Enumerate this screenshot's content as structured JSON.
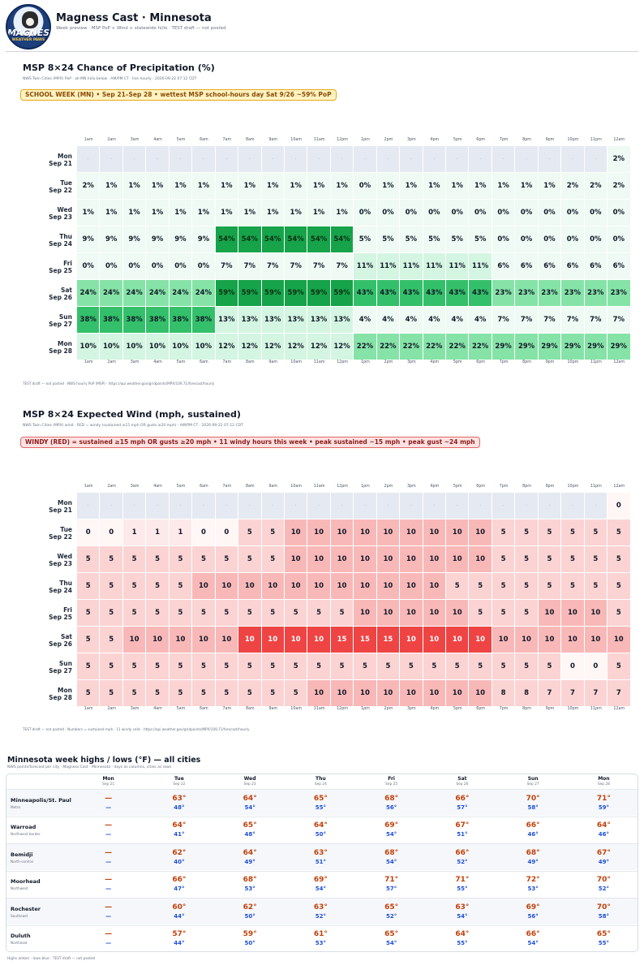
{
  "header": {
    "logo_text": "MAGNESS",
    "logo_sub": "WEATHER PAWS",
    "title": "Magness Cast · Minnesota",
    "subtitle": "Week preview  ·  MSP PoP + Wind + statewide hi/lo  ·  TEST draft — not posted"
  },
  "pop": {
    "title": "MSP 8×24 Chance of Precipitation (%)",
    "subtitle": "NWS Twin Cities (MPX) PoP · all-MN hi/lo below · AM/PM CT · live hourly · 2026-09-22 07:12 CDT",
    "banner": "SCHOOL WEEK (MN)  •  Sep 21–Sep 28  •  wettest MSP school-hours day Sat 9/26 ~59% PoP",
    "footer": "TEST draft — not posted  ·  NWS hourly PoP (MSP)  ·  https://api.weather.gov/gridpoints/MPX/109,71/forecast/hourly",
    "accent": "#16a34a"
  },
  "wind": {
    "title": "MSP 8×24 Expected Wind (mph, sustained)",
    "subtitle": "NWS Twin Cities (MPX) wind · RED = windy (sustained ≥15 mph OR gusts ≥20 mph) · AM/PM CT · 2026-09-22 07:12 CDT",
    "banner": "WINDY (RED) = sustained ≥15 mph OR gusts ≥20 mph  •  11 windy hours this week  •  peak sustained ~15 mph  •  peak gust ~24 mph",
    "footer": "TEST draft — not posted  ·  Numbers = sustained mph  ·  11 windy cells  ·  https://api.weather.gov/gridpoints/MPX/109,71/forecast/hourly",
    "accent": "#ef4444"
  },
  "hours": [
    "1am",
    "2am",
    "3am",
    "4am",
    "5am",
    "6am",
    "7am",
    "8am",
    "9am",
    "10am",
    "11am",
    "12pm",
    "1pm",
    "2pm",
    "3pm",
    "4pm",
    "5pm",
    "6pm",
    "7pm",
    "8pm",
    "9pm",
    "10pm",
    "11pm",
    "12am"
  ],
  "days": [
    {
      "dow": "Mon",
      "date": "Sep 21"
    },
    {
      "dow": "Tue",
      "date": "Sep 22"
    },
    {
      "dow": "Wed",
      "date": "Sep 23"
    },
    {
      "dow": "Thu",
      "date": "Sep 24"
    },
    {
      "dow": "Fri",
      "date": "Sep 25"
    },
    {
      "dow": "Sat",
      "date": "Sep 26"
    },
    {
      "dow": "Sun",
      "date": "Sep 27"
    },
    {
      "dow": "Mon",
      "date": "Sep 28"
    }
  ],
  "pop_values": [
    [
      null,
      null,
      null,
      null,
      null,
      null,
      null,
      null,
      null,
      null,
      null,
      null,
      null,
      null,
      null,
      null,
      null,
      null,
      null,
      null,
      null,
      null,
      null,
      2
    ],
    [
      2,
      1,
      1,
      1,
      1,
      1,
      1,
      1,
      1,
      1,
      1,
      1,
      0,
      1,
      1,
      1,
      1,
      1,
      1,
      1,
      1,
      2,
      2,
      2
    ],
    [
      1,
      1,
      1,
      1,
      1,
      1,
      1,
      1,
      1,
      1,
      1,
      1,
      0,
      0,
      0,
      0,
      0,
      0,
      0,
      0,
      0,
      0,
      0,
      0
    ],
    [
      9,
      9,
      9,
      9,
      9,
      9,
      54,
      54,
      54,
      54,
      54,
      54,
      5,
      5,
      5,
      5,
      5,
      5,
      0,
      0,
      0,
      0,
      0,
      0
    ],
    [
      0,
      0,
      0,
      0,
      0,
      0,
      7,
      7,
      7,
      7,
      7,
      7,
      11,
      11,
      11,
      11,
      11,
      11,
      6,
      6,
      6,
      6,
      6,
      6
    ],
    [
      24,
      24,
      24,
      24,
      24,
      24,
      59,
      59,
      59,
      59,
      59,
      59,
      43,
      43,
      43,
      43,
      43,
      43,
      23,
      23,
      23,
      23,
      23,
      23
    ],
    [
      38,
      38,
      38,
      38,
      38,
      38,
      13,
      13,
      13,
      13,
      13,
      13,
      4,
      4,
      4,
      4,
      4,
      4,
      7,
      7,
      7,
      7,
      7,
      7
    ],
    [
      10,
      10,
      10,
      10,
      10,
      10,
      12,
      12,
      12,
      12,
      12,
      12,
      22,
      22,
      22,
      22,
      22,
      22,
      29,
      29,
      29,
      29,
      29,
      29
    ]
  ],
  "wind_values": [
    [
      null,
      null,
      null,
      null,
      null,
      null,
      null,
      null,
      null,
      null,
      null,
      null,
      null,
      null,
      null,
      null,
      null,
      null,
      null,
      null,
      null,
      null,
      null,
      0
    ],
    [
      0,
      0,
      1,
      1,
      1,
      0,
      0,
      5,
      5,
      10,
      10,
      10,
      10,
      10,
      10,
      10,
      10,
      10,
      5,
      5,
      5,
      5,
      5,
      5
    ],
    [
      5,
      5,
      5,
      5,
      5,
      5,
      5,
      5,
      5,
      10,
      10,
      10,
      10,
      10,
      10,
      10,
      10,
      10,
      5,
      5,
      5,
      5,
      5,
      5
    ],
    [
      5,
      5,
      5,
      5,
      5,
      10,
      10,
      10,
      10,
      10,
      10,
      10,
      10,
      10,
      10,
      10,
      5,
      5,
      5,
      5,
      5,
      5,
      5,
      5
    ],
    [
      5,
      5,
      5,
      5,
      5,
      5,
      5,
      5,
      5,
      5,
      5,
      5,
      10,
      10,
      10,
      10,
      10,
      5,
      5,
      5,
      10,
      10,
      10,
      5
    ],
    [
      5,
      5,
      10,
      10,
      10,
      10,
      10,
      10,
      10,
      10,
      10,
      15,
      15,
      15,
      10,
      10,
      10,
      10,
      10,
      10,
      10,
      10,
      10,
      10
    ],
    [
      5,
      5,
      5,
      5,
      5,
      5,
      5,
      5,
      5,
      5,
      5,
      5,
      5,
      5,
      5,
      5,
      5,
      5,
      5,
      5,
      5,
      0,
      0,
      5
    ],
    [
      5,
      5,
      5,
      5,
      5,
      5,
      5,
      5,
      5,
      5,
      10,
      10,
      10,
      10,
      10,
      10,
      10,
      10,
      8,
      8,
      7,
      7,
      7,
      7
    ]
  ],
  "wind_windy": [
    [
      0,
      0,
      0,
      0,
      0,
      0,
      0,
      0,
      0,
      0,
      0,
      0,
      0,
      0,
      0,
      0,
      0,
      0,
      0,
      0,
      0,
      0,
      0,
      0
    ],
    [
      0,
      0,
      0,
      0,
      0,
      0,
      0,
      0,
      0,
      0,
      0,
      0,
      0,
      0,
      0,
      0,
      0,
      0,
      0,
      0,
      0,
      0,
      0,
      0
    ],
    [
      0,
      0,
      0,
      0,
      0,
      0,
      0,
      0,
      0,
      0,
      0,
      0,
      0,
      0,
      0,
      0,
      0,
      0,
      0,
      0,
      0,
      0,
      0,
      0
    ],
    [
      0,
      0,
      0,
      0,
      0,
      0,
      0,
      0,
      0,
      0,
      0,
      0,
      0,
      0,
      0,
      0,
      0,
      0,
      0,
      0,
      0,
      0,
      0,
      0
    ],
    [
      0,
      0,
      0,
      0,
      0,
      0,
      0,
      0,
      0,
      0,
      0,
      0,
      0,
      0,
      0,
      0,
      0,
      0,
      0,
      0,
      0,
      0,
      0,
      0
    ],
    [
      0,
      0,
      0,
      0,
      0,
      0,
      0,
      1,
      1,
      1,
      1,
      1,
      1,
      1,
      1,
      1,
      1,
      1,
      0,
      0,
      0,
      0,
      0,
      0
    ],
    [
      0,
      0,
      0,
      0,
      0,
      0,
      0,
      0,
      0,
      0,
      0,
      0,
      0,
      0,
      0,
      0,
      0,
      0,
      0,
      0,
      0,
      0,
      0,
      0
    ],
    [
      0,
      0,
      0,
      0,
      0,
      0,
      0,
      0,
      0,
      0,
      0,
      0,
      0,
      0,
      0,
      0,
      0,
      0,
      0,
      0,
      0,
      0,
      0,
      0
    ]
  ],
  "temps": {
    "title": "Minnesota week highs / lows (°F) — all cities",
    "subtitle": "NWS points/forecast per city  ·  Magness Cast · Minnesota  ·  days as columns, cities as rows",
    "footer": "Highs amber · lows blue  ·  TEST draft — not posted",
    "cities": [
      {
        "name": "Minneapolis/St. Paul",
        "region": "Metro",
        "hi": [
          "—",
          "63°",
          "64°",
          "65°",
          "68°",
          "66°",
          "70°",
          "71°"
        ],
        "lo": [
          "—",
          "48°",
          "54°",
          "55°",
          "56°",
          "57°",
          "58°",
          "59°"
        ]
      },
      {
        "name": "Warroad",
        "region": "Northwest border",
        "hi": [
          "—",
          "64°",
          "65°",
          "64°",
          "69°",
          "67°",
          "66°",
          "64°"
        ],
        "lo": [
          "—",
          "41°",
          "48°",
          "50°",
          "54°",
          "51°",
          "46°",
          "46°"
        ]
      },
      {
        "name": "Bemidji",
        "region": "North-central",
        "hi": [
          "—",
          "62°",
          "64°",
          "63°",
          "68°",
          "66°",
          "68°",
          "67°"
        ],
        "lo": [
          "—",
          "40°",
          "49°",
          "51°",
          "54°",
          "52°",
          "49°",
          "49°"
        ]
      },
      {
        "name": "Moorhead",
        "region": "Northwest",
        "hi": [
          "—",
          "66°",
          "68°",
          "69°",
          "71°",
          "71°",
          "72°",
          "70°"
        ],
        "lo": [
          "—",
          "47°",
          "53°",
          "54°",
          "57°",
          "55°",
          "53°",
          "52°"
        ]
      },
      {
        "name": "Rochester",
        "region": "Southeast",
        "hi": [
          "—",
          "60°",
          "62°",
          "63°",
          "65°",
          "63°",
          "69°",
          "70°"
        ],
        "lo": [
          "—",
          "44°",
          "50°",
          "52°",
          "52°",
          "54°",
          "56°",
          "58°"
        ]
      },
      {
        "name": "Duluth",
        "region": "Northeast",
        "hi": [
          "—",
          "57°",
          "59°",
          "61°",
          "65°",
          "64°",
          "66°",
          "65°"
        ],
        "lo": [
          "—",
          "44°",
          "50°",
          "53°",
          "54°",
          "55°",
          "54°",
          "55°"
        ]
      }
    ]
  }
}
